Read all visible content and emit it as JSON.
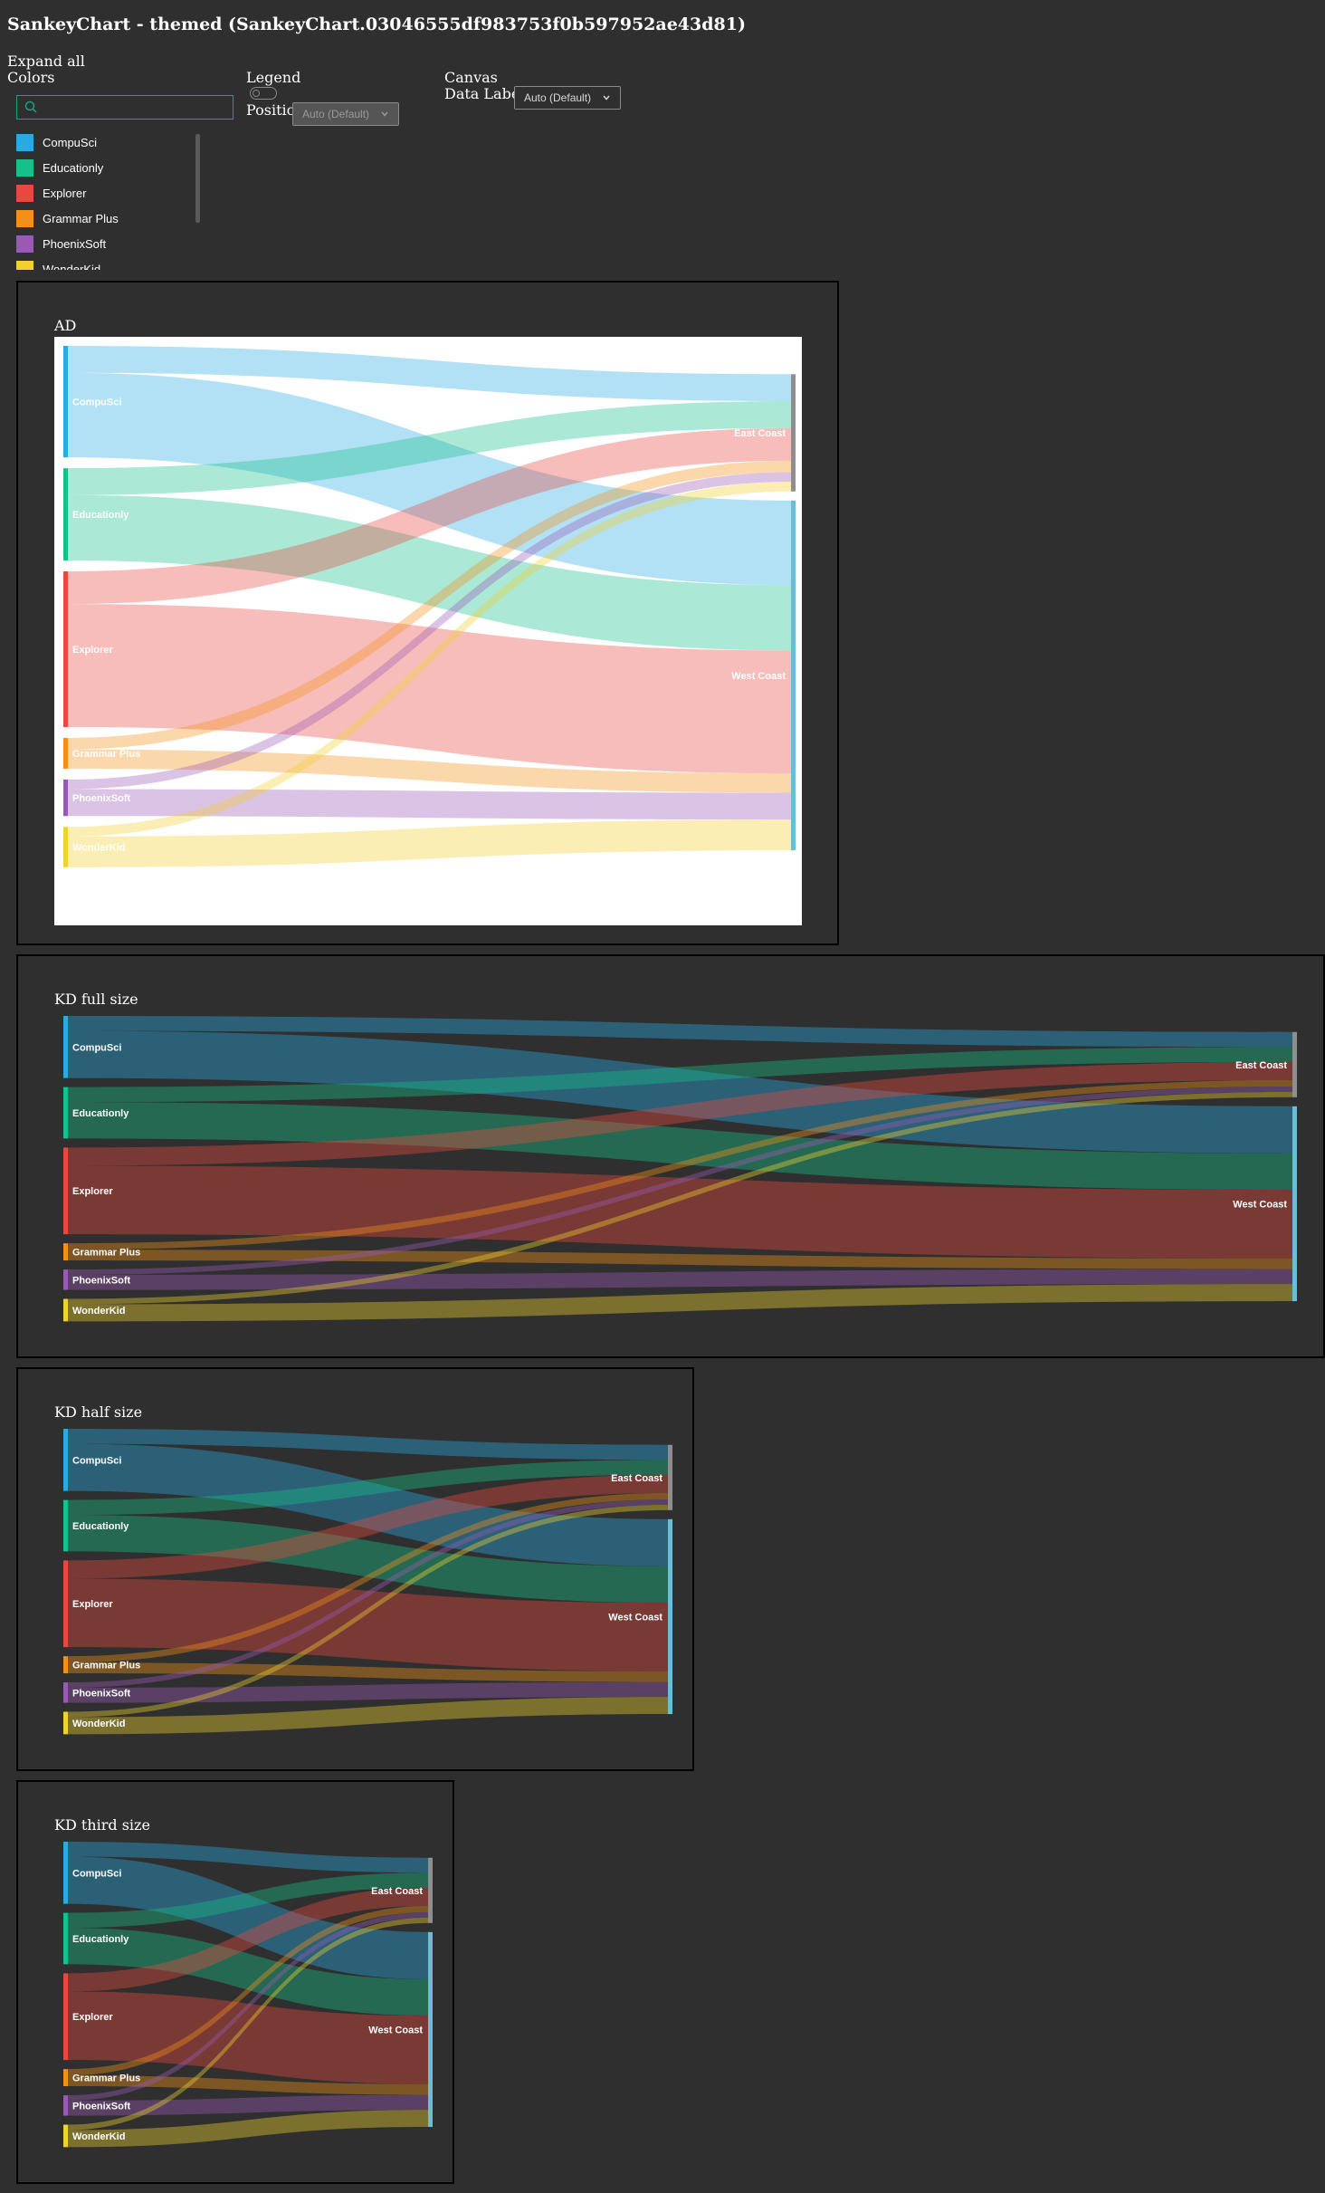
{
  "page": {
    "title": "SankeyChart - themed (SankeyChart.03046555df983753f0b597952ae43d81)"
  },
  "controls": {
    "expand_all": "Expand all",
    "colors": "Colors",
    "legend": "Legend",
    "position": "Position",
    "position_value": "Auto (Default)",
    "canvas": "Canvas",
    "data_labels": "Data Labels",
    "data_labels_value": "Auto (Default)",
    "search_value": ""
  },
  "legend_items": [
    {
      "label": "CompuSci",
      "color": "#29abe2"
    },
    {
      "label": "Educationly",
      "color": "#16c08a"
    },
    {
      "label": "Explorer",
      "color": "#e8493f"
    },
    {
      "label": "Grammar Plus",
      "color": "#f39019"
    },
    {
      "label": "PhoenixSoft",
      "color": "#9b59b6"
    },
    {
      "label": "WonderKid",
      "color": "#f1d130"
    }
  ],
  "chart_data": [
    {
      "type": "sankey",
      "title": "AD",
      "theme": "light",
      "sources": [
        "CompuSci",
        "Educationly",
        "Explorer",
        "Grammar Plus",
        "PhoenixSoft",
        "WonderKid"
      ],
      "targets": [
        "East Coast",
        "West Coast"
      ],
      "target_colors": [
        "#8e8e8e",
        "#6cbcd4"
      ],
      "links": [
        {
          "source": "CompuSci",
          "target": "East Coast",
          "value": 14
        },
        {
          "source": "CompuSci",
          "target": "West Coast",
          "value": 44
        },
        {
          "source": "Educationly",
          "target": "East Coast",
          "value": 14
        },
        {
          "source": "Educationly",
          "target": "West Coast",
          "value": 34
        },
        {
          "source": "Explorer",
          "target": "East Coast",
          "value": 17
        },
        {
          "source": "Explorer",
          "target": "West Coast",
          "value": 64
        },
        {
          "source": "Grammar Plus",
          "target": "East Coast",
          "value": 6
        },
        {
          "source": "Grammar Plus",
          "target": "West Coast",
          "value": 10
        },
        {
          "source": "PhoenixSoft",
          "target": "East Coast",
          "value": 5
        },
        {
          "source": "PhoenixSoft",
          "target": "West Coast",
          "value": 14
        },
        {
          "source": "WonderKid",
          "target": "East Coast",
          "value": 5
        },
        {
          "source": "WonderKid",
          "target": "West Coast",
          "value": 16
        }
      ]
    },
    {
      "type": "sankey",
      "title": "KD full size",
      "theme": "dark",
      "sources": [
        "CompuSci",
        "Educationly",
        "Explorer",
        "Grammar Plus",
        "PhoenixSoft",
        "WonderKid"
      ],
      "targets": [
        "East Coast",
        "West Coast"
      ],
      "target_colors": [
        "#8e8e8e",
        "#6cbcd4"
      ],
      "links": [
        {
          "source": "CompuSci",
          "target": "East Coast",
          "value": 14
        },
        {
          "source": "CompuSci",
          "target": "West Coast",
          "value": 44
        },
        {
          "source": "Educationly",
          "target": "East Coast",
          "value": 14
        },
        {
          "source": "Educationly",
          "target": "West Coast",
          "value": 34
        },
        {
          "source": "Explorer",
          "target": "East Coast",
          "value": 17
        },
        {
          "source": "Explorer",
          "target": "West Coast",
          "value": 64
        },
        {
          "source": "Grammar Plus",
          "target": "East Coast",
          "value": 6
        },
        {
          "source": "Grammar Plus",
          "target": "West Coast",
          "value": 10
        },
        {
          "source": "PhoenixSoft",
          "target": "East Coast",
          "value": 5
        },
        {
          "source": "PhoenixSoft",
          "target": "West Coast",
          "value": 14
        },
        {
          "source": "WonderKid",
          "target": "East Coast",
          "value": 5
        },
        {
          "source": "WonderKid",
          "target": "West Coast",
          "value": 16
        }
      ]
    },
    {
      "type": "sankey",
      "title": "KD half size",
      "theme": "dark",
      "sources": [
        "CompuSci",
        "Educationly",
        "Explorer",
        "Grammar Plus",
        "PhoenixSoft",
        "WonderKid"
      ],
      "targets": [
        "East Coast",
        "West Coast"
      ],
      "target_colors": [
        "#8e8e8e",
        "#6cbcd4"
      ],
      "links": [
        {
          "source": "CompuSci",
          "target": "East Coast",
          "value": 14
        },
        {
          "source": "CompuSci",
          "target": "West Coast",
          "value": 44
        },
        {
          "source": "Educationly",
          "target": "East Coast",
          "value": 14
        },
        {
          "source": "Educationly",
          "target": "West Coast",
          "value": 34
        },
        {
          "source": "Explorer",
          "target": "East Coast",
          "value": 17
        },
        {
          "source": "Explorer",
          "target": "West Coast",
          "value": 64
        },
        {
          "source": "Grammar Plus",
          "target": "East Coast",
          "value": 6
        },
        {
          "source": "Grammar Plus",
          "target": "West Coast",
          "value": 10
        },
        {
          "source": "PhoenixSoft",
          "target": "East Coast",
          "value": 5
        },
        {
          "source": "PhoenixSoft",
          "target": "West Coast",
          "value": 14
        },
        {
          "source": "WonderKid",
          "target": "East Coast",
          "value": 5
        },
        {
          "source": "WonderKid",
          "target": "West Coast",
          "value": 16
        }
      ]
    },
    {
      "type": "sankey",
      "title": "KD third size",
      "theme": "dark",
      "sources": [
        "CompuSci",
        "Educationly",
        "Explorer",
        "Grammar Plus",
        "PhoenixSoft",
        "WonderKid"
      ],
      "targets": [
        "East Coast",
        "West Coast"
      ],
      "target_colors": [
        "#8e8e8e",
        "#6cbcd4"
      ],
      "links": [
        {
          "source": "CompuSci",
          "target": "East Coast",
          "value": 14
        },
        {
          "source": "CompuSci",
          "target": "West Coast",
          "value": 44
        },
        {
          "source": "Educationly",
          "target": "East Coast",
          "value": 14
        },
        {
          "source": "Educationly",
          "target": "West Coast",
          "value": 34
        },
        {
          "source": "Explorer",
          "target": "East Coast",
          "value": 17
        },
        {
          "source": "Explorer",
          "target": "West Coast",
          "value": 64
        },
        {
          "source": "Grammar Plus",
          "target": "East Coast",
          "value": 6
        },
        {
          "source": "Grammar Plus",
          "target": "West Coast",
          "value": 10
        },
        {
          "source": "PhoenixSoft",
          "target": "East Coast",
          "value": 5
        },
        {
          "source": "PhoenixSoft",
          "target": "West Coast",
          "value": 14
        },
        {
          "source": "WonderKid",
          "target": "East Coast",
          "value": 5
        },
        {
          "source": "WonderKid",
          "target": "West Coast",
          "value": 16
        }
      ]
    }
  ]
}
